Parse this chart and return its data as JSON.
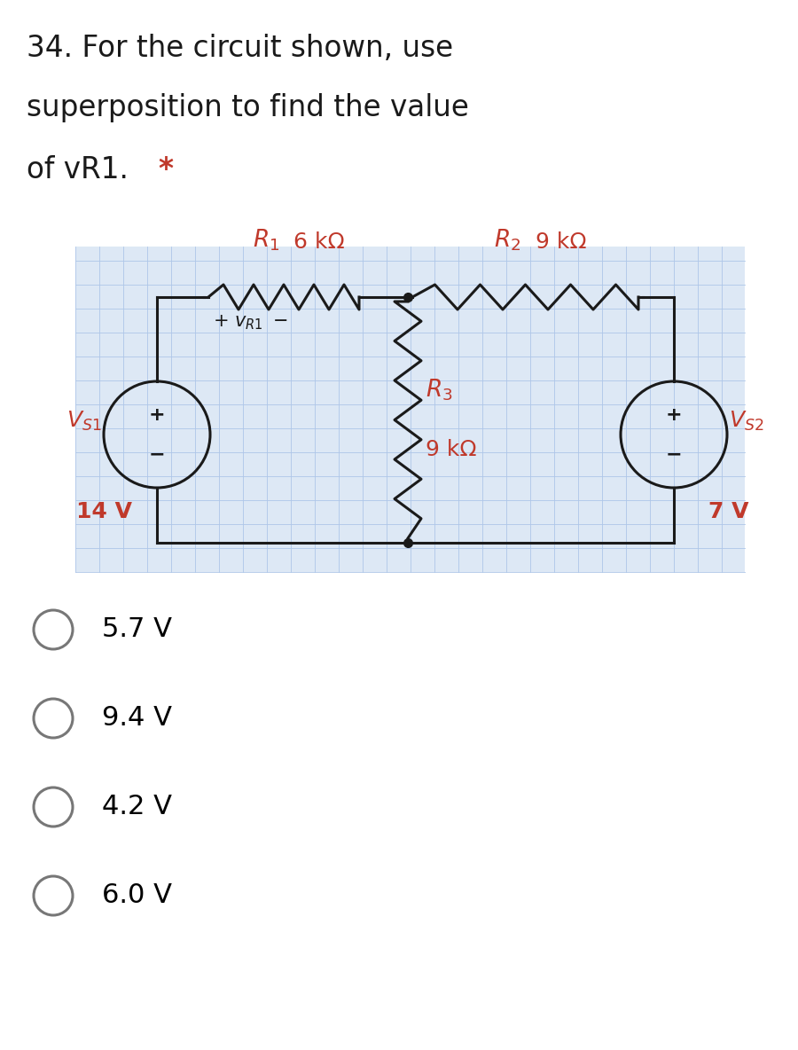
{
  "bg_color": "#ffffff",
  "circuit_bg": "#dde8f5",
  "question_line1": "34. For the circuit shown, use",
  "question_line2": "superposition to find the value",
  "question_line3": "of vR1.",
  "asterisk": "*",
  "options": [
    "5.7 V",
    "9.4 V",
    "4.2 V",
    "6.0 V"
  ],
  "text_color": "#000000",
  "red_color": "#c0392b",
  "dark_color": "#1a1a1a",
  "grid_color": "#aec6e8",
  "option_circle_color": "#777777",
  "r1_label": "R",
  "r1_sub": "1",
  "r1_val": "6 kΩ",
  "r2_label": "R",
  "r2_sub": "2",
  "r2_val": "9 kΩ",
  "r3_label": "R",
  "r3_sub": "3",
  "r3_val": "9 kΩ",
  "vs1_val": "14 V",
  "vs2_val": "7 V"
}
